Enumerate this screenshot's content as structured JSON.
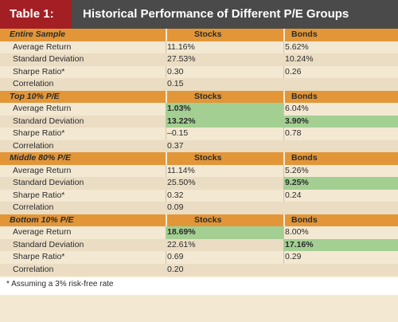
{
  "header": {
    "label": "Table 1:",
    "title": "Historical Performance of Different P/E Groups"
  },
  "sections": [
    {
      "name": "Entire Sample",
      "stocks_label": "Stocks",
      "bonds_label": "Bonds",
      "rows": [
        {
          "label": "Average Return",
          "stocks": "11.16%",
          "bonds": "5.62%"
        },
        {
          "label": "Standard Deviation",
          "stocks": "27.53%",
          "bonds": "10.24%"
        },
        {
          "label": "Sharpe Ratio*",
          "stocks": "0.30",
          "bonds": "0.26"
        },
        {
          "label": "Correlation",
          "stocks": "0.15",
          "bonds": ""
        }
      ]
    },
    {
      "name": "Top 10% P/E",
      "stocks_label": "Stocks",
      "bonds_label": "Bonds",
      "rows": [
        {
          "label": "Average Return",
          "stocks": "1.03%",
          "bonds": "6.04%"
        },
        {
          "label": "Standard Deviation",
          "stocks": "13.22%",
          "bonds": "3.90%"
        },
        {
          "label": "Sharpe Ratio*",
          "stocks": "–0.15",
          "bonds": "0.78"
        },
        {
          "label": "Correlation",
          "stocks": "0.37",
          "bonds": ""
        }
      ]
    },
    {
      "name": "Middle 80% P/E",
      "stocks_label": "Stocks",
      "bonds_label": "Bonds",
      "rows": [
        {
          "label": "Average Return",
          "stocks": "11.14%",
          "bonds": "5.26%"
        },
        {
          "label": "Standard Deviation",
          "stocks": "25.50%",
          "bonds": "9.25%"
        },
        {
          "label": "Sharpe Ratio*",
          "stocks": "0.32",
          "bonds": "0.24"
        },
        {
          "label": "Correlation",
          "stocks": "0.09",
          "bonds": ""
        }
      ]
    },
    {
      "name": "Bottom 10% P/E",
      "stocks_label": "Stocks",
      "bonds_label": "Bonds",
      "rows": [
        {
          "label": "Average Return",
          "stocks": "18.69%",
          "bonds": "8.00%"
        },
        {
          "label": "Standard Deviation",
          "stocks": "22.61%",
          "bonds": "17.16%"
        },
        {
          "label": "Sharpe Ratio*",
          "stocks": "0.69",
          "bonds": "0.29"
        },
        {
          "label": "Correlation",
          "stocks": "0.20",
          "bonds": ""
        }
      ]
    }
  ],
  "highlight_color": "#a3cf92",
  "highlighted_cells": [
    {
      "section": 1,
      "row": 0,
      "col": "stocks"
    },
    {
      "section": 1,
      "row": 1,
      "col": "stocks"
    },
    {
      "section": 1,
      "row": 1,
      "col": "bonds"
    },
    {
      "section": 2,
      "row": 1,
      "col": "bonds"
    },
    {
      "section": 3,
      "row": 0,
      "col": "stocks"
    },
    {
      "section": 3,
      "row": 1,
      "col": "bonds"
    }
  ],
  "footnote": "* Assuming a 3% risk-free rate"
}
